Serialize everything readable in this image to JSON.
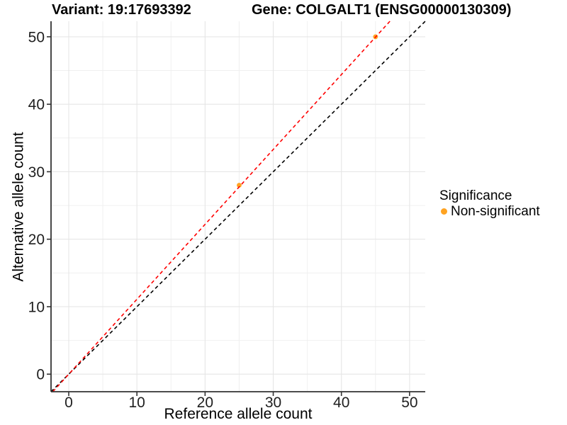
{
  "chart_data": {
    "type": "scatter",
    "title_left": "Variant: 19:17693392",
    "title_right": "Gene: COLGALT1 (ENSG00000130309)",
    "xlabel": "Reference allele count",
    "ylabel": "Alternative allele count",
    "xlim": [
      -2.6,
      52.3
    ],
    "ylim": [
      -2.6,
      52.3
    ],
    "x_ticks": [
      0,
      10,
      20,
      30,
      40,
      50
    ],
    "y_ticks": [
      0,
      10,
      20,
      30,
      40,
      50
    ],
    "x_minor_gridlines": [
      5,
      15,
      25,
      35,
      45
    ],
    "y_minor_gridlines": [
      5,
      15,
      25,
      35,
      45
    ],
    "grid": true,
    "points": [
      {
        "x": 25,
        "y": 28,
        "series": "Non-significant"
      },
      {
        "x": 45,
        "y": 50,
        "series": "Non-significant"
      }
    ],
    "lines": [
      {
        "name": "identity-line",
        "slope": 1.0,
        "intercept": 0,
        "color": "#000000",
        "dash": "dashed"
      },
      {
        "name": "fitted-line",
        "slope": 1.11,
        "intercept": 0,
        "color": "#FF0000",
        "dash": "dashed"
      }
    ],
    "legend": {
      "title": "Significance",
      "position": "right",
      "items": [
        {
          "label": "Non-significant",
          "color": "#FFA321"
        }
      ]
    },
    "colors": {
      "point": "#FFA321",
      "grid_major": "#E6E6E6",
      "grid_minor": "#F0F0F0",
      "axis": "#333333",
      "tick_label": "#1f1f1f",
      "background": "#FFFFFF"
    }
  }
}
